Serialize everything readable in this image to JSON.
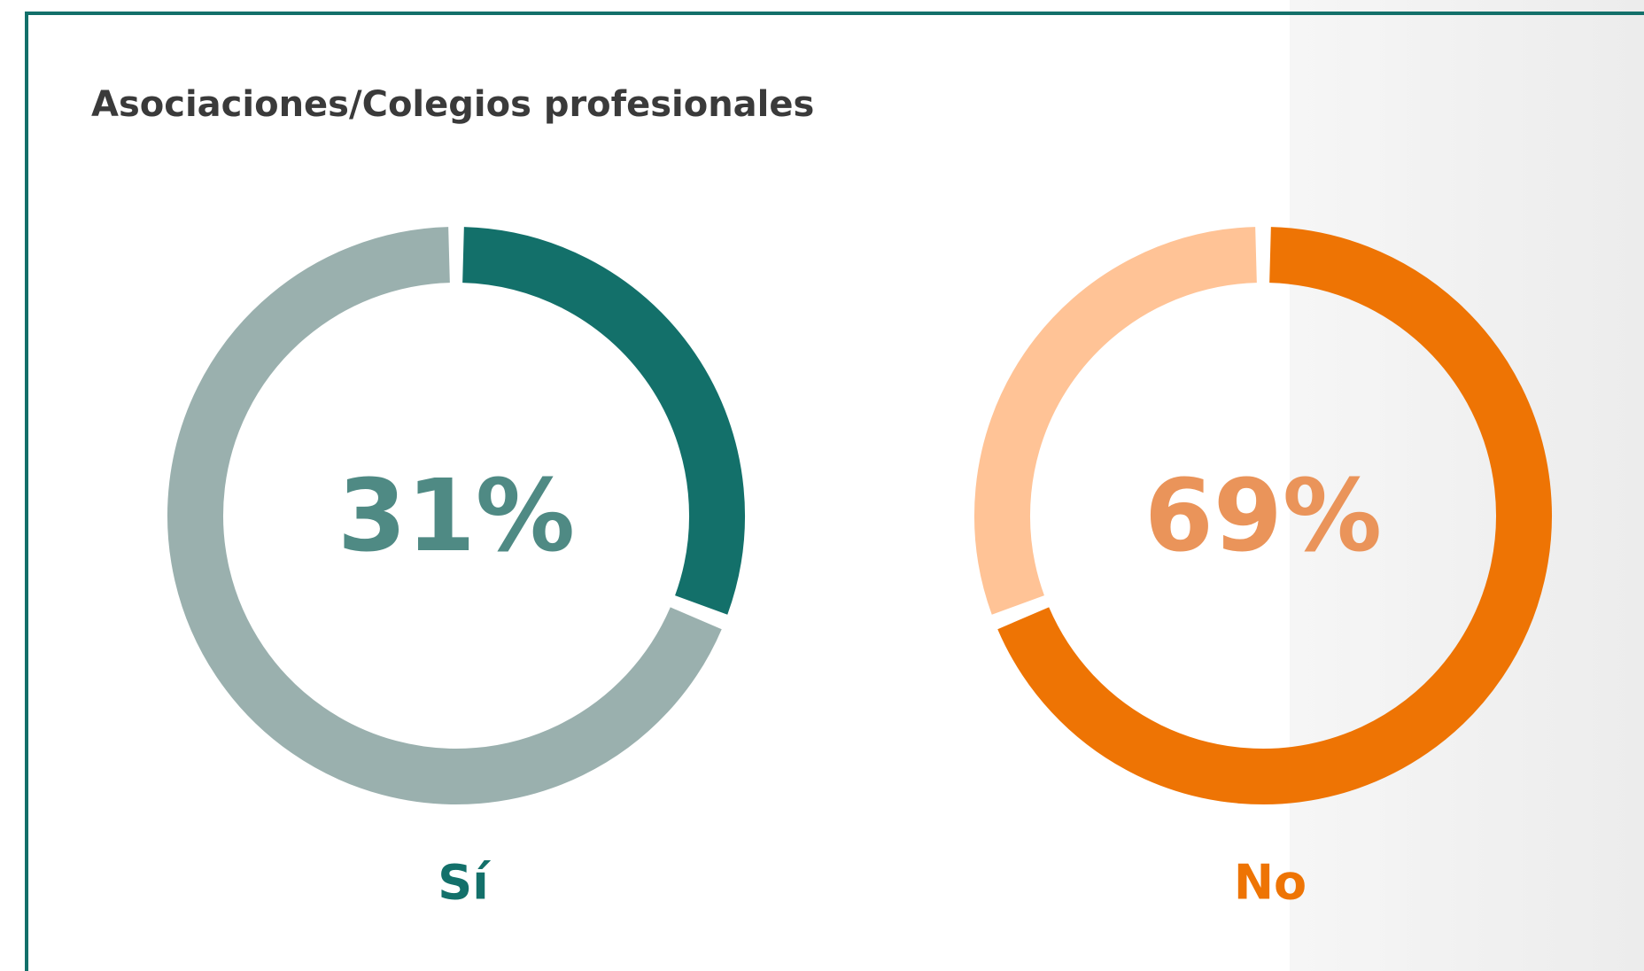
{
  "title": "Asociaciones/Colegios profesionales",
  "chart_data": [
    {
      "type": "donut",
      "categories": [
        "Sí",
        null
      ],
      "values": [
        31,
        69
      ],
      "value_labels": [
        "31%",
        null
      ],
      "colors": [
        "#13706a",
        "#9ab0ae"
      ],
      "value_label_color": "#4f8a84",
      "category_color": "#13706a"
    },
    {
      "type": "donut",
      "categories": [
        "No",
        null
      ],
      "values": [
        69,
        31
      ],
      "value_labels": [
        "69%",
        null
      ],
      "colors": [
        "#ee7404",
        "#ffc396"
      ],
      "value_label_color": "#ea945a",
      "category_color": "#ee7404"
    }
  ]
}
